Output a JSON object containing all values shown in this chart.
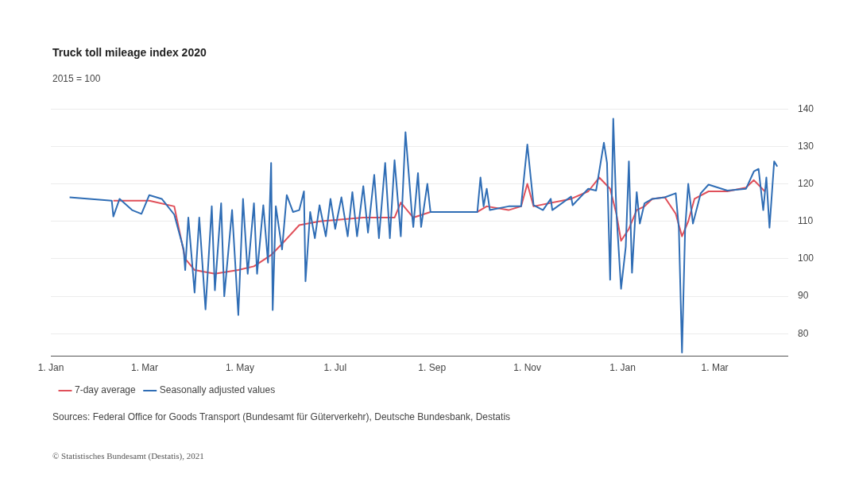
{
  "chart_data": {
    "type": "line",
    "title": "Truck toll mileage index 2020",
    "subtitle": "2015 = 100",
    "xlim": [
      "2020-01-01",
      "2021-04-17"
    ],
    "xticks": [
      {
        "value": "2020-01-01",
        "label": "1. Jan"
      },
      {
        "value": "2020-03-01",
        "label": "1. Mar"
      },
      {
        "value": "2020-05-01",
        "label": "1. May"
      },
      {
        "value": "2020-07-01",
        "label": "1. Jul"
      },
      {
        "value": "2020-09-01",
        "label": "1. Sep"
      },
      {
        "value": "2020-11-01",
        "label": "1. Nov"
      },
      {
        "value": "2021-01-01",
        "label": "1. Jan"
      },
      {
        "value": "2021-03-01",
        "label": "1. Mar"
      }
    ],
    "ylim": [
      74,
      140
    ],
    "yticks": [
      80,
      90,
      100,
      110,
      120,
      130,
      140
    ],
    "grid": "y",
    "legend": "bottom left",
    "series": [
      {
        "name": "7-day average",
        "color": "#e0505a",
        "x": [
          "2020-02-10",
          "2020-03-04",
          "2020-03-20",
          "2020-03-27",
          "2020-04-02",
          "2020-04-15",
          "2020-04-30",
          "2020-05-10",
          "2020-05-21",
          "2020-05-28",
          "2020-06-08",
          "2020-06-21",
          "2020-07-19",
          "2020-08-08",
          "2020-08-12",
          "2020-08-20",
          "2020-08-31",
          "2020-09-30",
          "2020-10-06",
          "2020-10-20",
          "2020-10-28",
          "2020-11-01",
          "2020-11-05",
          "2020-11-29",
          "2020-12-10",
          "2020-12-17",
          "2020-12-24",
          "2020-12-28",
          "2020-12-31",
          "2021-01-05",
          "2021-01-10",
          "2021-01-15",
          "2021-01-20",
          "2021-01-28",
          "2021-02-04",
          "2021-02-08",
          "2021-02-12",
          "2021-02-16",
          "2021-02-25",
          "2021-03-09",
          "2021-03-21",
          "2021-03-26",
          "2021-04-02"
        ],
        "values": [
          115.5,
          115.5,
          114,
          100,
          97,
          96,
          97,
          98,
          101,
          104,
          109,
          110,
          111,
          111,
          115,
          111,
          112.5,
          112.5,
          114,
          113,
          114,
          120,
          114,
          116,
          118,
          121.7,
          118.7,
          112,
          104.8,
          108,
          113,
          114,
          116,
          116.4,
          112,
          106,
          110,
          116,
          118,
          118,
          119,
          121,
          118
        ]
      },
      {
        "name": "Seasonally adjusted values",
        "color": "#2f6db5",
        "x": [
          "2020-01-13",
          "2020-02-09",
          "2020-02-10",
          "2020-02-14",
          "2020-02-22",
          "2020-02-28",
          "2020-03-04",
          "2020-03-12",
          "2020-03-20",
          "2020-03-26",
          "2020-03-27",
          "2020-03-29",
          "2020-04-02",
          "2020-04-05",
          "2020-04-09",
          "2020-04-13",
          "2020-04-15",
          "2020-04-19",
          "2020-04-21",
          "2020-04-26",
          "2020-04-30",
          "2020-05-03",
          "2020-05-06",
          "2020-05-10",
          "2020-05-12",
          "2020-05-16",
          "2020-05-19",
          "2020-05-21",
          "2020-05-22",
          "2020-05-24",
          "2020-05-28",
          "2020-05-31",
          "2020-06-04",
          "2020-06-08",
          "2020-06-11",
          "2020-06-12",
          "2020-06-15",
          "2020-06-18",
          "2020-06-21",
          "2020-06-25",
          "2020-06-28",
          "2020-07-01",
          "2020-07-05",
          "2020-07-09",
          "2020-07-12",
          "2020-07-15",
          "2020-07-19",
          "2020-07-22",
          "2020-07-26",
          "2020-07-29",
          "2020-08-02",
          "2020-08-05",
          "2020-08-08",
          "2020-08-12",
          "2020-08-15",
          "2020-08-19",
          "2020-08-20",
          "2020-08-23",
          "2020-08-25",
          "2020-08-29",
          "2020-08-31",
          "2020-09-15",
          "2020-09-30",
          "2020-10-02",
          "2020-10-04",
          "2020-10-06",
          "2020-10-08",
          "2020-10-20",
          "2020-10-28",
          "2020-11-01",
          "2020-11-05",
          "2020-11-11",
          "2020-11-16",
          "2020-11-17",
          "2020-11-29",
          "2020-11-30",
          "2020-12-10",
          "2020-12-15",
          "2020-12-20",
          "2020-12-22",
          "2020-12-24",
          "2020-12-26",
          "2020-12-28",
          "2020-12-31",
          "2021-01-03",
          "2021-01-05",
          "2021-01-07",
          "2021-01-10",
          "2021-01-12",
          "2021-01-15",
          "2021-01-20",
          "2021-01-28",
          "2021-02-04",
          "2021-02-06",
          "2021-02-08",
          "2021-02-10",
          "2021-02-12",
          "2021-02-15",
          "2021-02-20",
          "2021-02-25",
          "2021-03-09",
          "2021-03-21",
          "2021-03-26",
          "2021-03-29",
          "2021-04-01",
          "2021-04-03",
          "2021-04-05",
          "2021-04-08",
          "2021-04-10"
        ],
        "values": [
          116.4,
          115.5,
          111.3,
          116,
          113,
          112,
          117,
          116,
          111.8,
          102.5,
          97,
          111,
          91,
          111,
          86.5,
          114,
          91.6,
          114.8,
          90,
          113,
          85,
          116,
          96,
          114.8,
          96,
          114.3,
          99,
          125.6,
          86.3,
          114,
          102.5,
          117,
          112.5,
          113,
          118,
          94,
          112.5,
          105.5,
          114.3,
          106,
          116,
          108,
          116.4,
          106,
          117.8,
          106,
          119.4,
          107,
          122.4,
          105.5,
          125.6,
          105.5,
          126.3,
          106,
          133.8,
          112.5,
          108.5,
          122.9,
          108.5,
          120,
          112.5,
          112.5,
          112.5,
          121.7,
          114,
          118.7,
          113,
          114,
          114,
          130.5,
          114.3,
          113,
          116,
          113,
          116.6,
          114.3,
          118.7,
          118.2,
          131,
          125.6,
          94.4,
          137.4,
          112.5,
          92,
          103.2,
          126,
          96.3,
          117.8,
          109.4,
          114.8,
          116,
          116.4,
          117.5,
          108,
          75,
          108,
          120,
          109.4,
          117.5,
          119.8,
          118.2,
          118.7,
          123.3,
          124,
          113,
          121.7,
          108.3,
          126,
          124.6
        ]
      }
    ],
    "annotations": [
      "Sources: Federal Office for Goods Transport (Bundesamt für Güterverkehr), Deutsche Bundesbank, Destatis",
      "© Statistisches Bundesamt (Destatis), 2021"
    ]
  }
}
